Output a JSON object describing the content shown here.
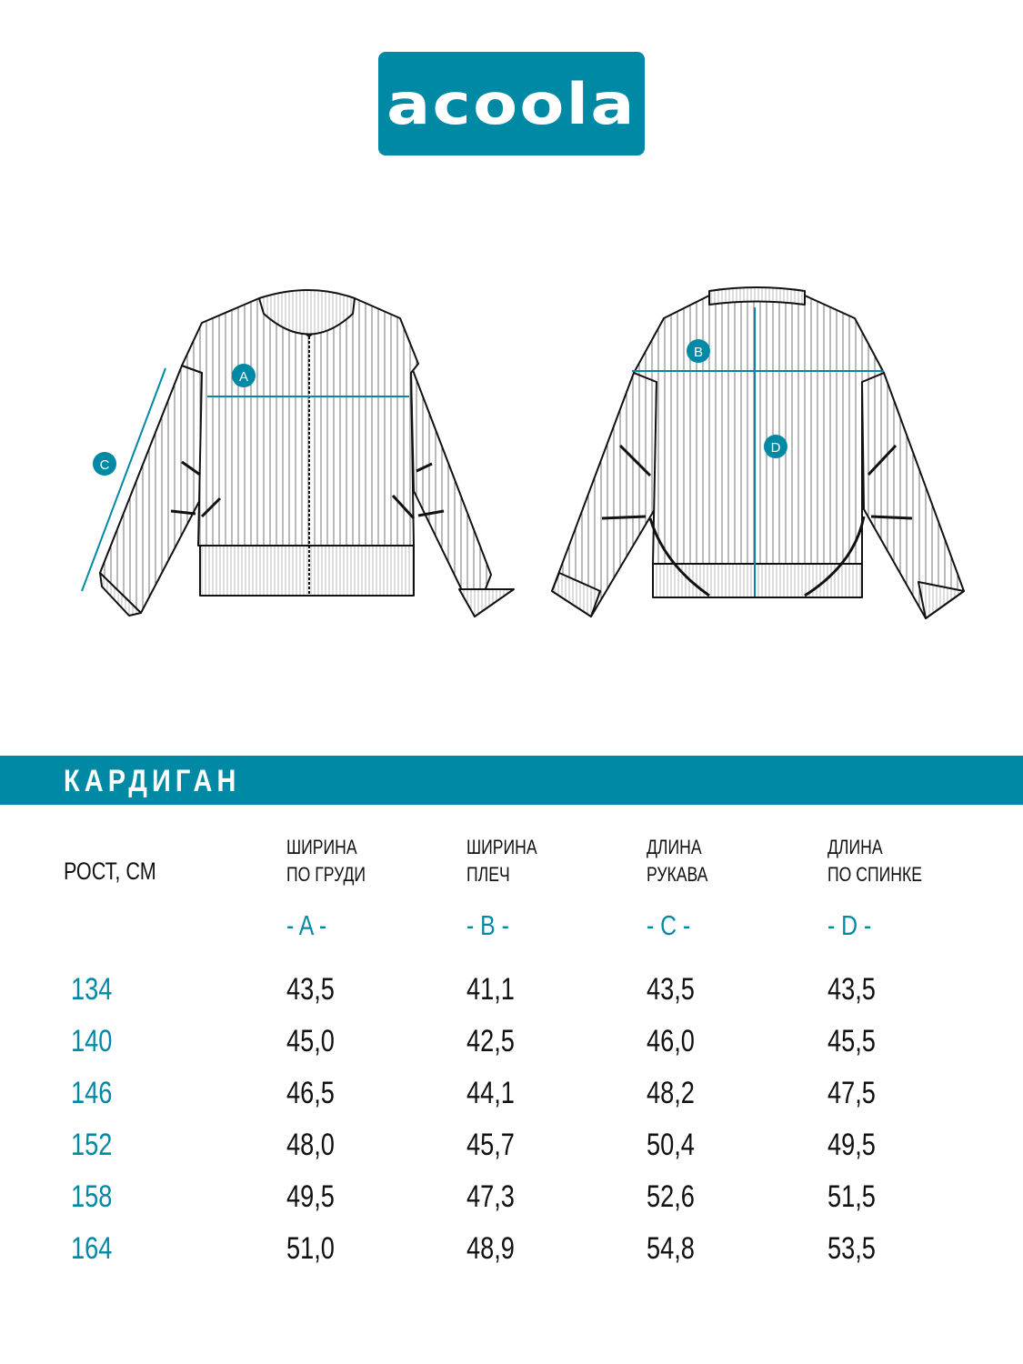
{
  "brand": {
    "logo_text": "acoola",
    "color": "#0089a5"
  },
  "diagram": {
    "markers": [
      "A",
      "B",
      "C",
      "D"
    ]
  },
  "table": {
    "title": "КАРДИГАН",
    "first_header": "РОСТ, СМ",
    "columns": [
      {
        "line1": "ШИРИНА",
        "line2": "ПО ГРУДИ",
        "letter": "- A -"
      },
      {
        "line1": "ШИРИНА",
        "line2": "ПЛЕЧ",
        "letter": "- B -"
      },
      {
        "line1": "ДЛИНА",
        "line2": "РУКАВА",
        "letter": "- C -"
      },
      {
        "line1": "ДЛИНА",
        "line2": "ПО СПИНКЕ",
        "letter": "- D -"
      }
    ],
    "rows": [
      {
        "size": "134",
        "values": [
          "43,5",
          "41,1",
          "43,5",
          "43,5"
        ]
      },
      {
        "size": "140",
        "values": [
          "45,0",
          "42,5",
          "46,0",
          "45,5"
        ]
      },
      {
        "size": "146",
        "values": [
          "46,5",
          "44,1",
          "48,2",
          "47,5"
        ]
      },
      {
        "size": "152",
        "values": [
          "48,0",
          "45,7",
          "50,4",
          "49,5"
        ]
      },
      {
        "size": "158",
        "values": [
          "49,5",
          "47,3",
          "52,6",
          "51,5"
        ]
      },
      {
        "size": "164",
        "values": [
          "51,0",
          "48,9",
          "54,8",
          "53,5"
        ]
      }
    ]
  }
}
